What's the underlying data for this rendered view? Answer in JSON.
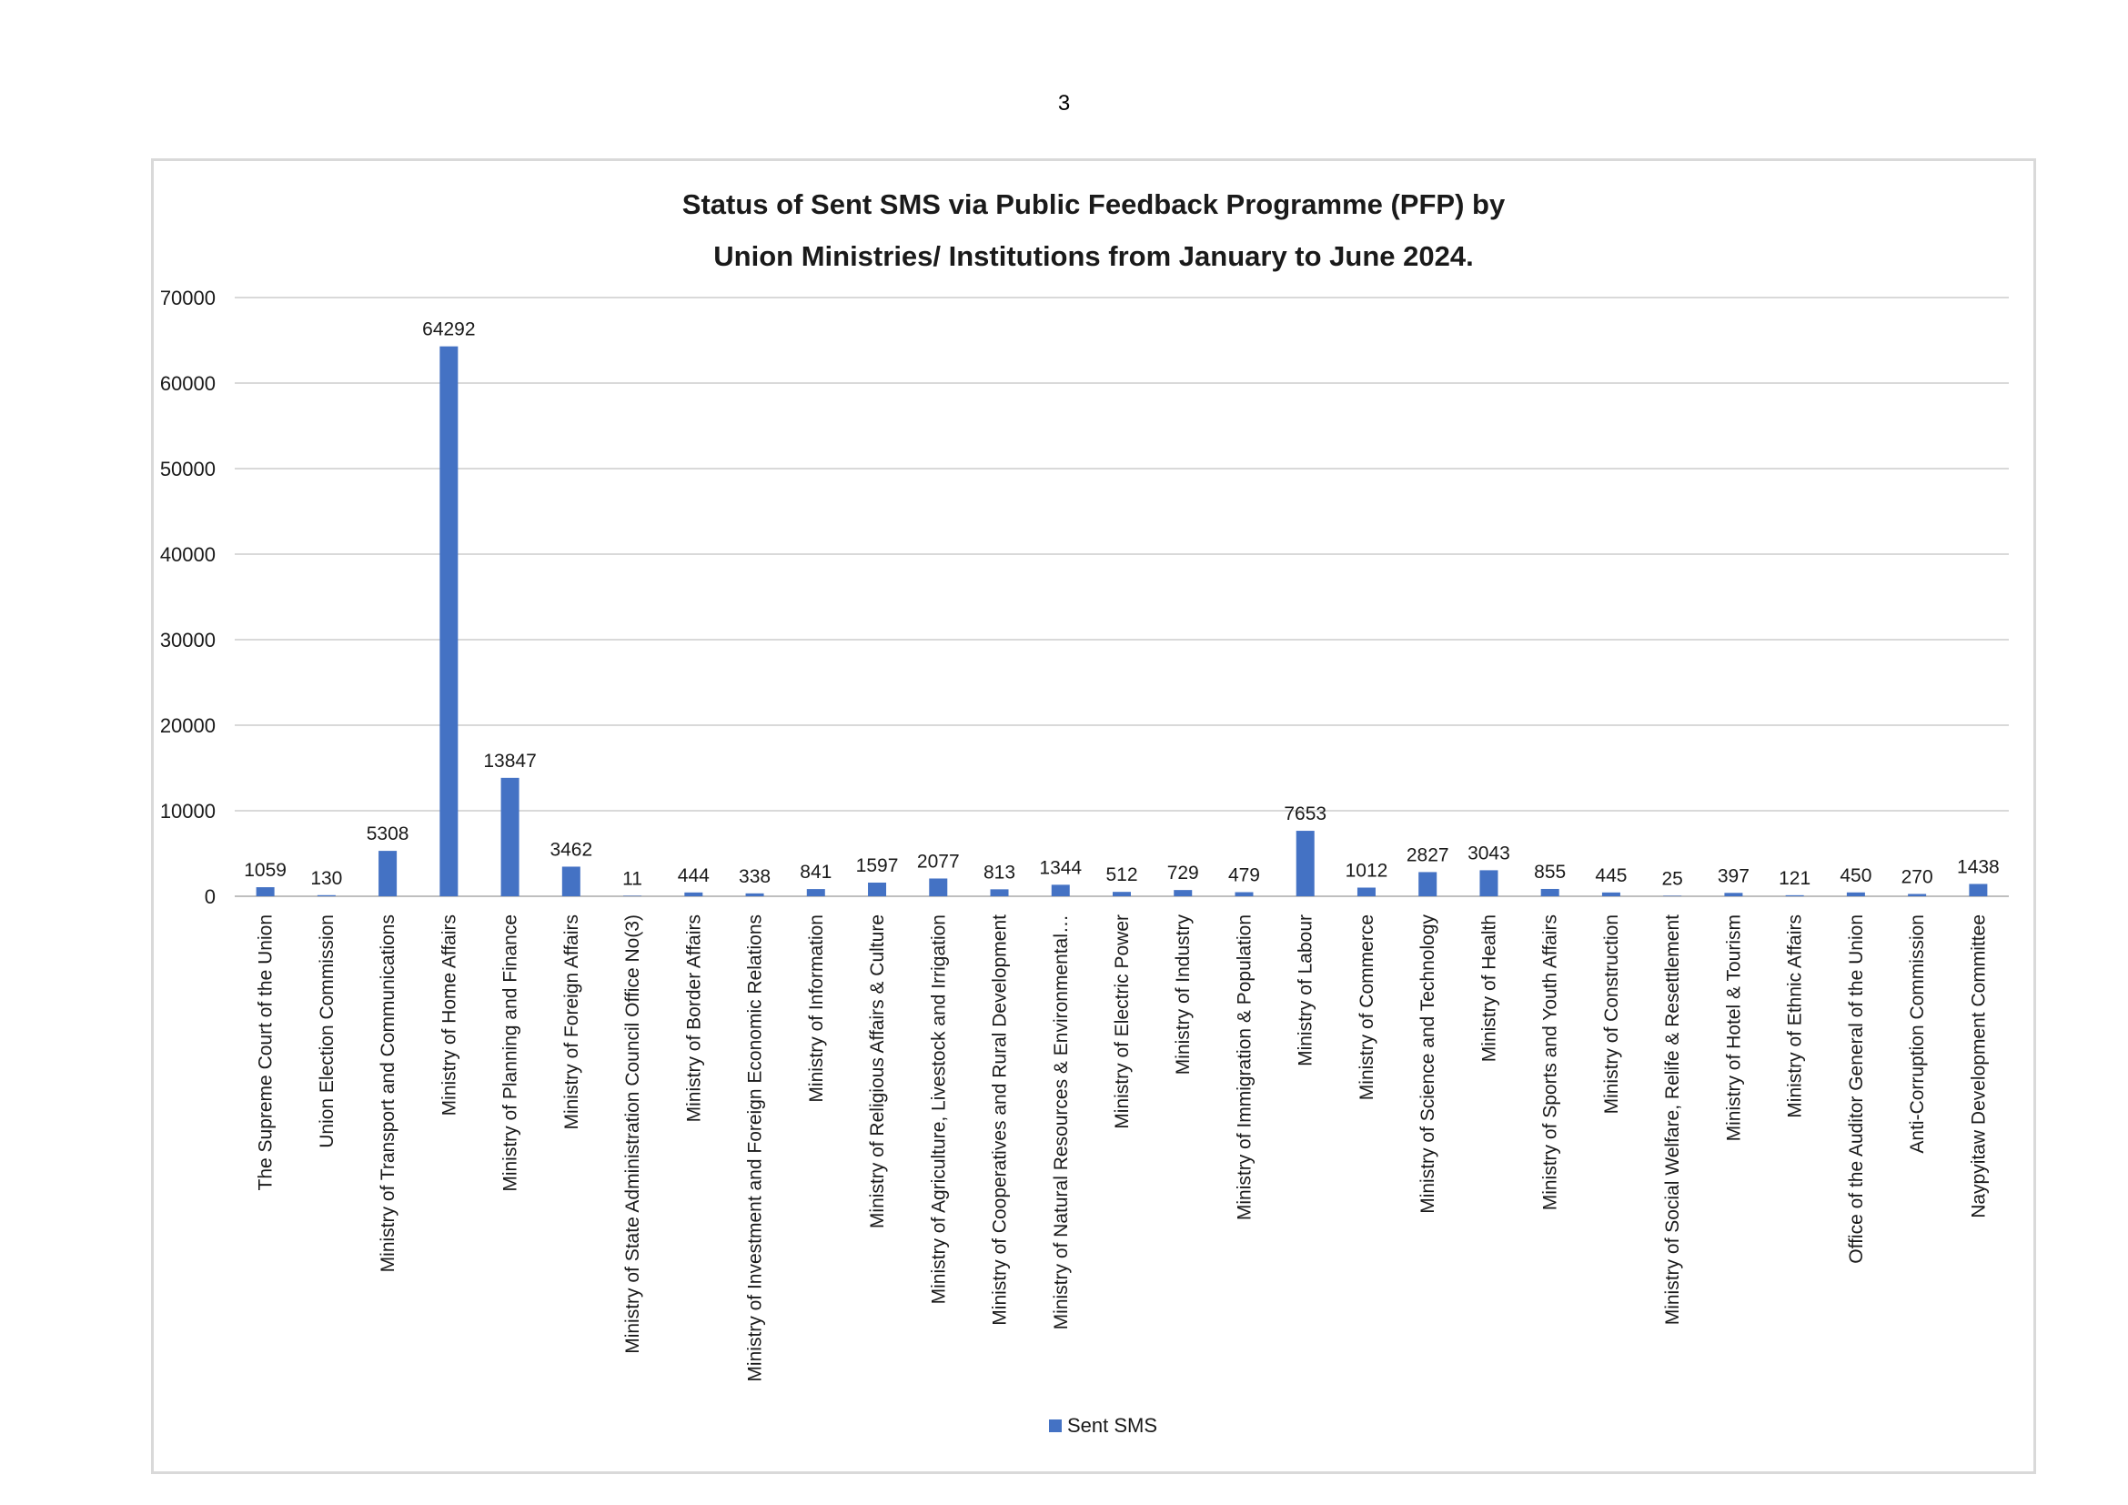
{
  "page": {
    "number": "3"
  },
  "chart_data": {
    "type": "bar",
    "title_lines": [
      "Status of Sent SMS via Public Feedback Programme (PFP) by",
      "Union Ministries/ Institutions from January to June 2024."
    ],
    "xlabel": "",
    "ylabel": "",
    "ylim": [
      0,
      70000
    ],
    "yticks": [
      0,
      10000,
      20000,
      30000,
      40000,
      50000,
      60000,
      70000
    ],
    "grid": true,
    "legend_position": "bottom",
    "categories": [
      "The Supreme Court of the Union",
      "Union Election Commission",
      "Ministry of Transport and Communications",
      "Ministry of Home Affairs",
      "Ministry of Planning and Finance",
      "Ministry of Foreign Affairs",
      "Ministry of State Administration Council Office No(3)",
      "Ministry of Border Affairs",
      "Ministry of Investment and Foreign Economic Relations",
      "Ministry of Information",
      "Ministry of Religious Affairs & Culture",
      "Ministry of Agriculture, Livestock and Irrigation",
      "Ministry of Cooperatives and Rural Development",
      "Ministry of Natural Resources & Environmental…",
      "Ministry of Electric Power",
      "Ministry of Industry",
      "Ministry of Immigration & Population",
      "Ministry of Labour",
      "Ministry of Commerce",
      "Ministry of Science and Technology",
      "Ministry of Health",
      "Ministry of Sports and Youth Affairs",
      "Ministry of Construction",
      "Ministry of Social Welfare, Relife & Resettlement",
      "Ministry of Hotel & Tourism",
      "Ministry of Ethnic Affairs",
      "Office of the Auditor General of the Union",
      "Anti-Corruption Commission",
      "Naypyitaw Development Committee"
    ],
    "series": [
      {
        "name": "Sent SMS",
        "color": "#4472c4",
        "values": [
          1059,
          130,
          5308,
          64292,
          13847,
          3462,
          11,
          444,
          338,
          841,
          1597,
          2077,
          813,
          1344,
          512,
          729,
          479,
          7653,
          1012,
          2827,
          3043,
          855,
          445,
          25,
          397,
          121,
          450,
          270,
          1438
        ]
      }
    ],
    "gridline_color": "#d9d9d9",
    "axis_color": "#bfbfbf"
  }
}
